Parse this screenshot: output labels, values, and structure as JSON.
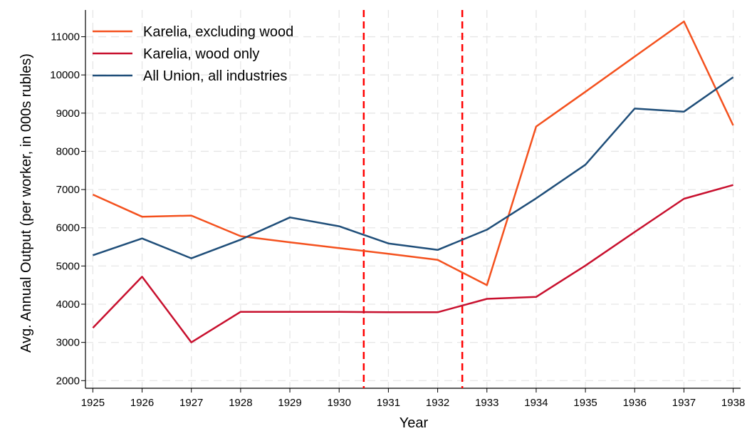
{
  "chart_data": {
    "type": "line",
    "xlabel": "Year",
    "ylabel": "Avg. Annual Output (per worker, in 000s rubles)",
    "x": [
      1925,
      1926,
      1927,
      1928,
      1929,
      1930,
      1931,
      1932,
      1933,
      1934,
      1935,
      1936,
      1937,
      1938
    ],
    "x_ticks": [
      "1925",
      "1926",
      "1927",
      "1928",
      "1929",
      "1930",
      "1931",
      "1932",
      "1933",
      "1934",
      "1935",
      "1936",
      "1937",
      "1938"
    ],
    "y_ticks": [
      "2000",
      "3000",
      "4000",
      "5000",
      "6000",
      "7000",
      "8000",
      "9000",
      "10000",
      "11000"
    ],
    "xlim": [
      1924.85,
      1938.15
    ],
    "ylim": [
      1800,
      11700
    ],
    "grid": true,
    "legend_position": "top-left",
    "series": [
      {
        "name": "Karelia, excluding wood",
        "color": "#f4511e",
        "values": [
          6870,
          6290,
          6320,
          5780,
          5620,
          5470,
          5320,
          5160,
          4500,
          8650,
          9560,
          10480,
          11400,
          8680
        ]
      },
      {
        "name": "Karelia, wood only",
        "color": "#c8102e",
        "values": [
          3380,
          4720,
          3000,
          3800,
          3800,
          3800,
          3790,
          3790,
          4140,
          4190,
          5010,
          5890,
          6760,
          7120
        ]
      },
      {
        "name": "All Union, all industries",
        "color": "#1f4e79",
        "values": [
          5280,
          5720,
          5200,
          5690,
          6270,
          6040,
          5590,
          5420,
          5950,
          6770,
          7650,
          9120,
          9040,
          9940
        ]
      }
    ],
    "reference_lines": [
      {
        "x": 1930.5,
        "color": "#ff0000",
        "style": "dashed"
      },
      {
        "x": 1932.5,
        "color": "#ff0000",
        "style": "dashed"
      }
    ]
  }
}
